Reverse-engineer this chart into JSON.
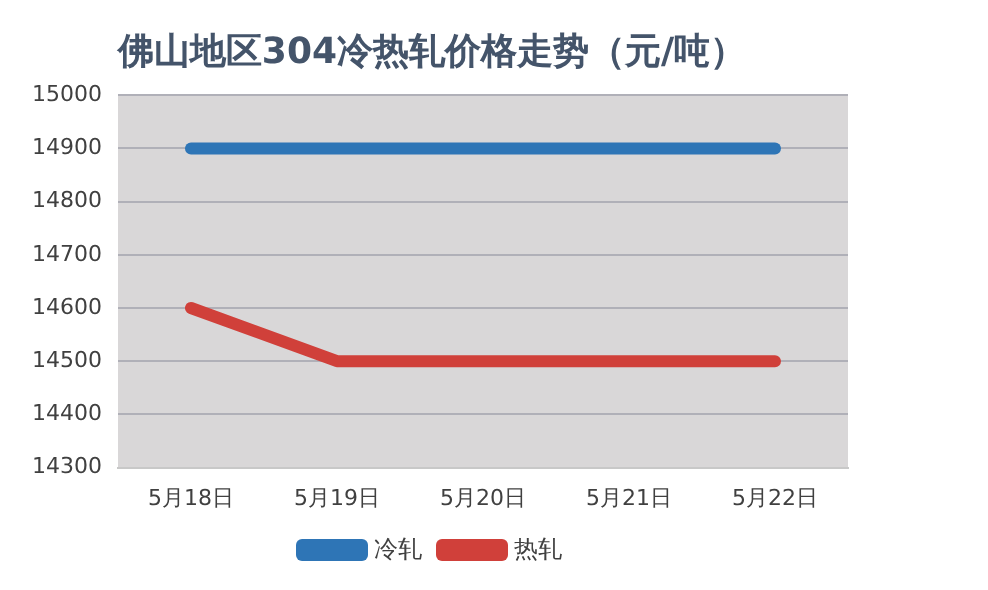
{
  "chart_data": {
    "type": "line",
    "title": "佛山地区304冷热轧价格走势（元/吨）",
    "categories": [
      "5月18日",
      "5月19日",
      "5月20日",
      "5月21日",
      "5月22日"
    ],
    "series": [
      {
        "name": "冷轧",
        "color": "#2e75b6",
        "values": [
          14900,
          14900,
          14900,
          14900,
          14900
        ]
      },
      {
        "name": "热轧",
        "color": "#d0403a",
        "values": [
          14600,
          14500,
          14500,
          14500,
          14500
        ]
      }
    ],
    "ylim": [
      14300,
      15000
    ],
    "yticks": [
      14300,
      14400,
      14500,
      14600,
      14700,
      14800,
      14900,
      15000
    ],
    "grid": "y",
    "legend": "bottom",
    "marker": "none",
    "line_style": "solid"
  }
}
